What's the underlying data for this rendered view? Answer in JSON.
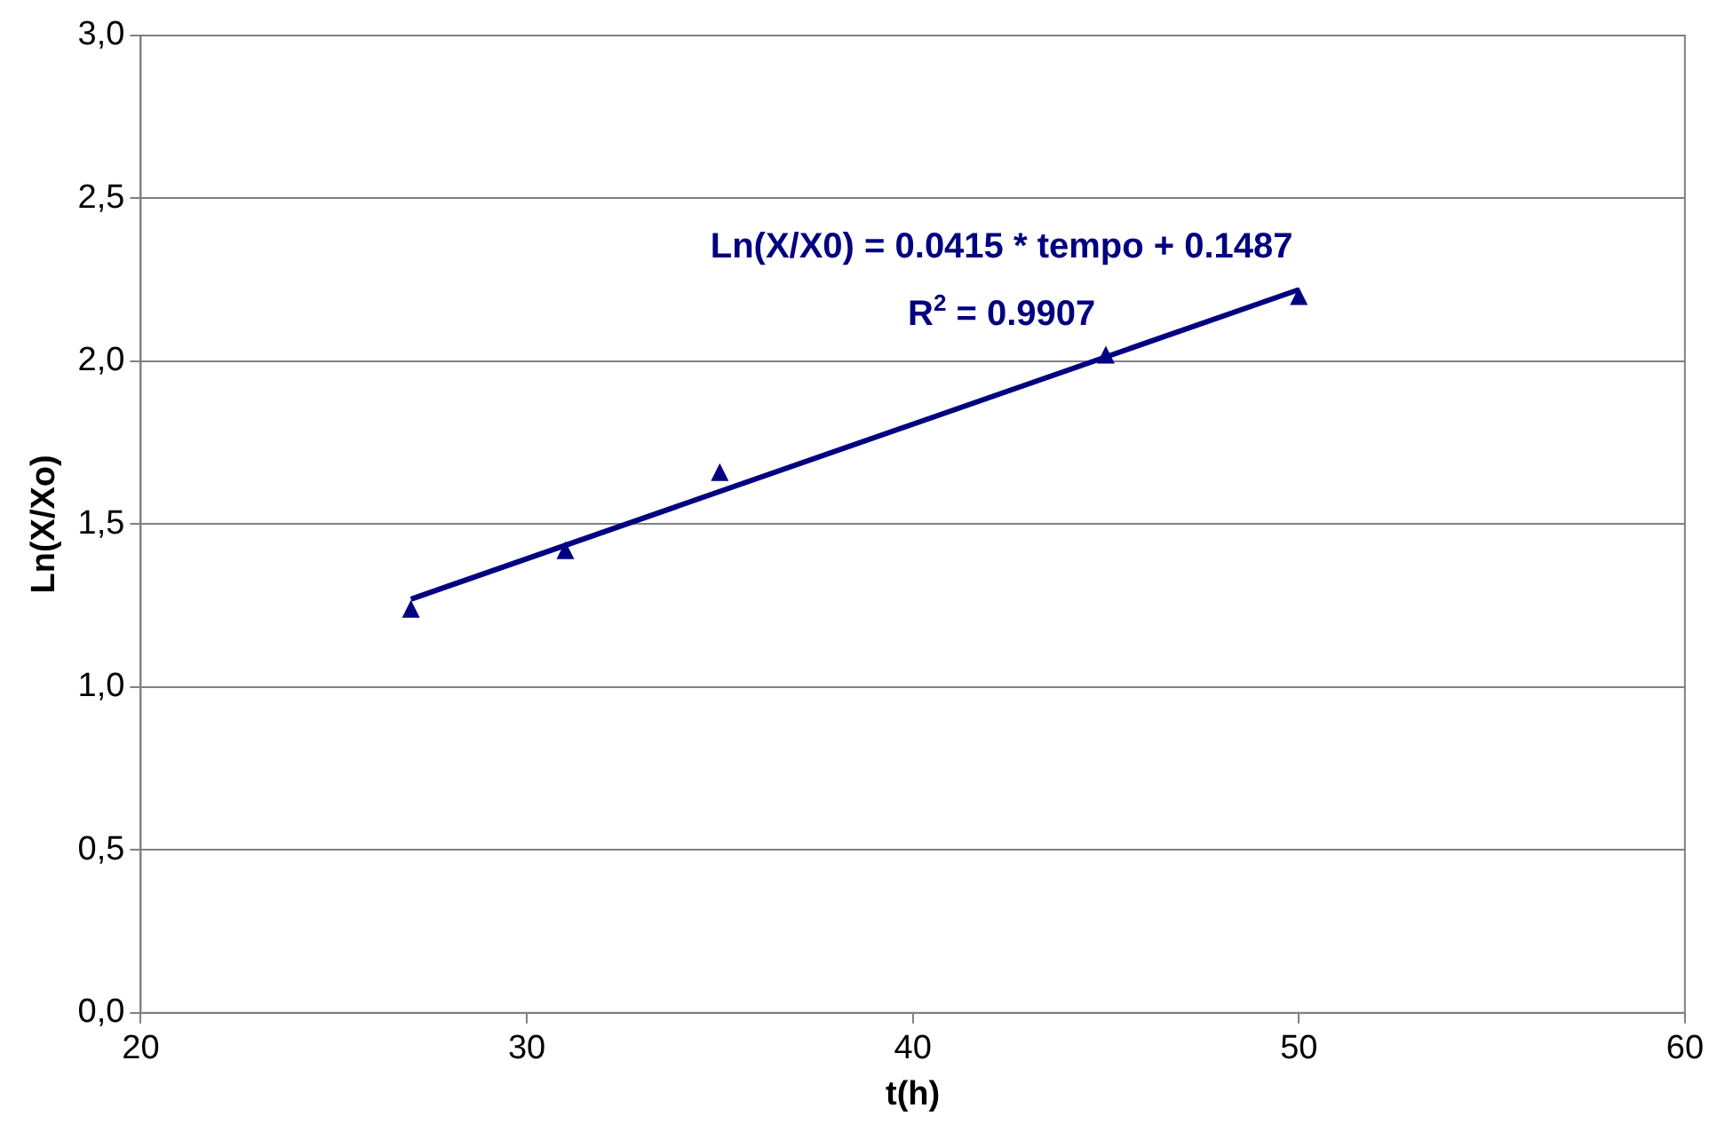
{
  "chart_data": {
    "type": "scatter",
    "xlabel": "t(h)",
    "ylabel": "Ln(X/Xo)",
    "series": [
      {
        "type": "scatter",
        "color": "#000080",
        "marker": "triangle",
        "x": [
          27,
          31,
          35,
          45,
          50
        ],
        "values": [
          1.24,
          1.42,
          1.66,
          2.02,
          2.2
        ]
      },
      {
        "type": "line",
        "color": "#000080",
        "marker": "none",
        "line_style": "solid",
        "x": [
          27,
          50
        ],
        "values": [
          1.27,
          2.22
        ]
      }
    ],
    "annotations": [
      "Ln(X/X0) = 0.0415 * tempo + 0.1487",
      "R$^{2}$ = 0.9907"
    ],
    "xlim": [
      20,
      60
    ],
    "xticks": [
      20,
      30,
      40,
      50,
      60
    ],
    "ylim": [
      0,
      3
    ],
    "yticks": [
      {
        "value": 0,
        "label": "0,0"
      },
      {
        "value": 0.5,
        "label": "0,5"
      },
      {
        "value": 1,
        "label": "1,0"
      },
      {
        "value": 1.5,
        "label": "1,5"
      },
      {
        "value": 2,
        "label": "2,0"
      },
      {
        "value": 2.5,
        "label": "2,5"
      },
      {
        "value": 3,
        "label": "3,0"
      }
    ],
    "grid": "y",
    "legend": false
  }
}
